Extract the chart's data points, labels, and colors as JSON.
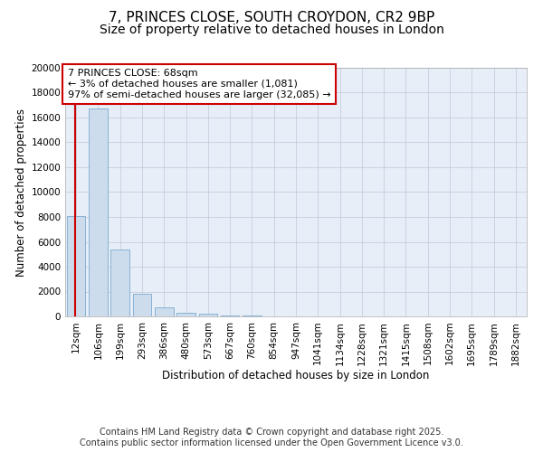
{
  "title_line1": "7, PRINCES CLOSE, SOUTH CROYDON, CR2 9BP",
  "title_line2": "Size of property relative to detached houses in London",
  "xlabel": "Distribution of detached houses by size in London",
  "ylabel": "Number of detached properties",
  "categories": [
    "12sqm",
    "106sqm",
    "199sqm",
    "293sqm",
    "386sqm",
    "480sqm",
    "573sqm",
    "667sqm",
    "760sqm",
    "854sqm",
    "947sqm",
    "1041sqm",
    "1134sqm",
    "1228sqm",
    "1321sqm",
    "1415sqm",
    "1508sqm",
    "1602sqm",
    "1695sqm",
    "1789sqm",
    "1882sqm"
  ],
  "values": [
    8100,
    16700,
    5400,
    1850,
    750,
    300,
    200,
    100,
    50,
    0,
    0,
    0,
    0,
    0,
    0,
    0,
    0,
    0,
    0,
    0,
    0
  ],
  "bar_color": "#cddcec",
  "bar_edge_color": "#7aaace",
  "annotation_text": "7 PRINCES CLOSE: 68sqm\n← 3% of detached houses are smaller (1,081)\n97% of semi-detached houses are larger (32,085) →",
  "annotation_box_color": "#ffffff",
  "annotation_box_edge": "#cc0000",
  "vline_color": "#cc0000",
  "vline_x": 0.07,
  "ylim": [
    0,
    20000
  ],
  "yticks": [
    0,
    2000,
    4000,
    6000,
    8000,
    10000,
    12000,
    14000,
    16000,
    18000,
    20000
  ],
  "grid_color": "#c0c8d8",
  "bg_color": "#ffffff",
  "plot_bg_color": "#e8eef8",
  "footer_text": "Contains HM Land Registry data © Crown copyright and database right 2025.\nContains public sector information licensed under the Open Government Licence v3.0.",
  "title_fontsize": 11,
  "subtitle_fontsize": 10,
  "axis_label_fontsize": 8.5,
  "tick_fontsize": 7.5,
  "annotation_fontsize": 8,
  "footer_fontsize": 7
}
